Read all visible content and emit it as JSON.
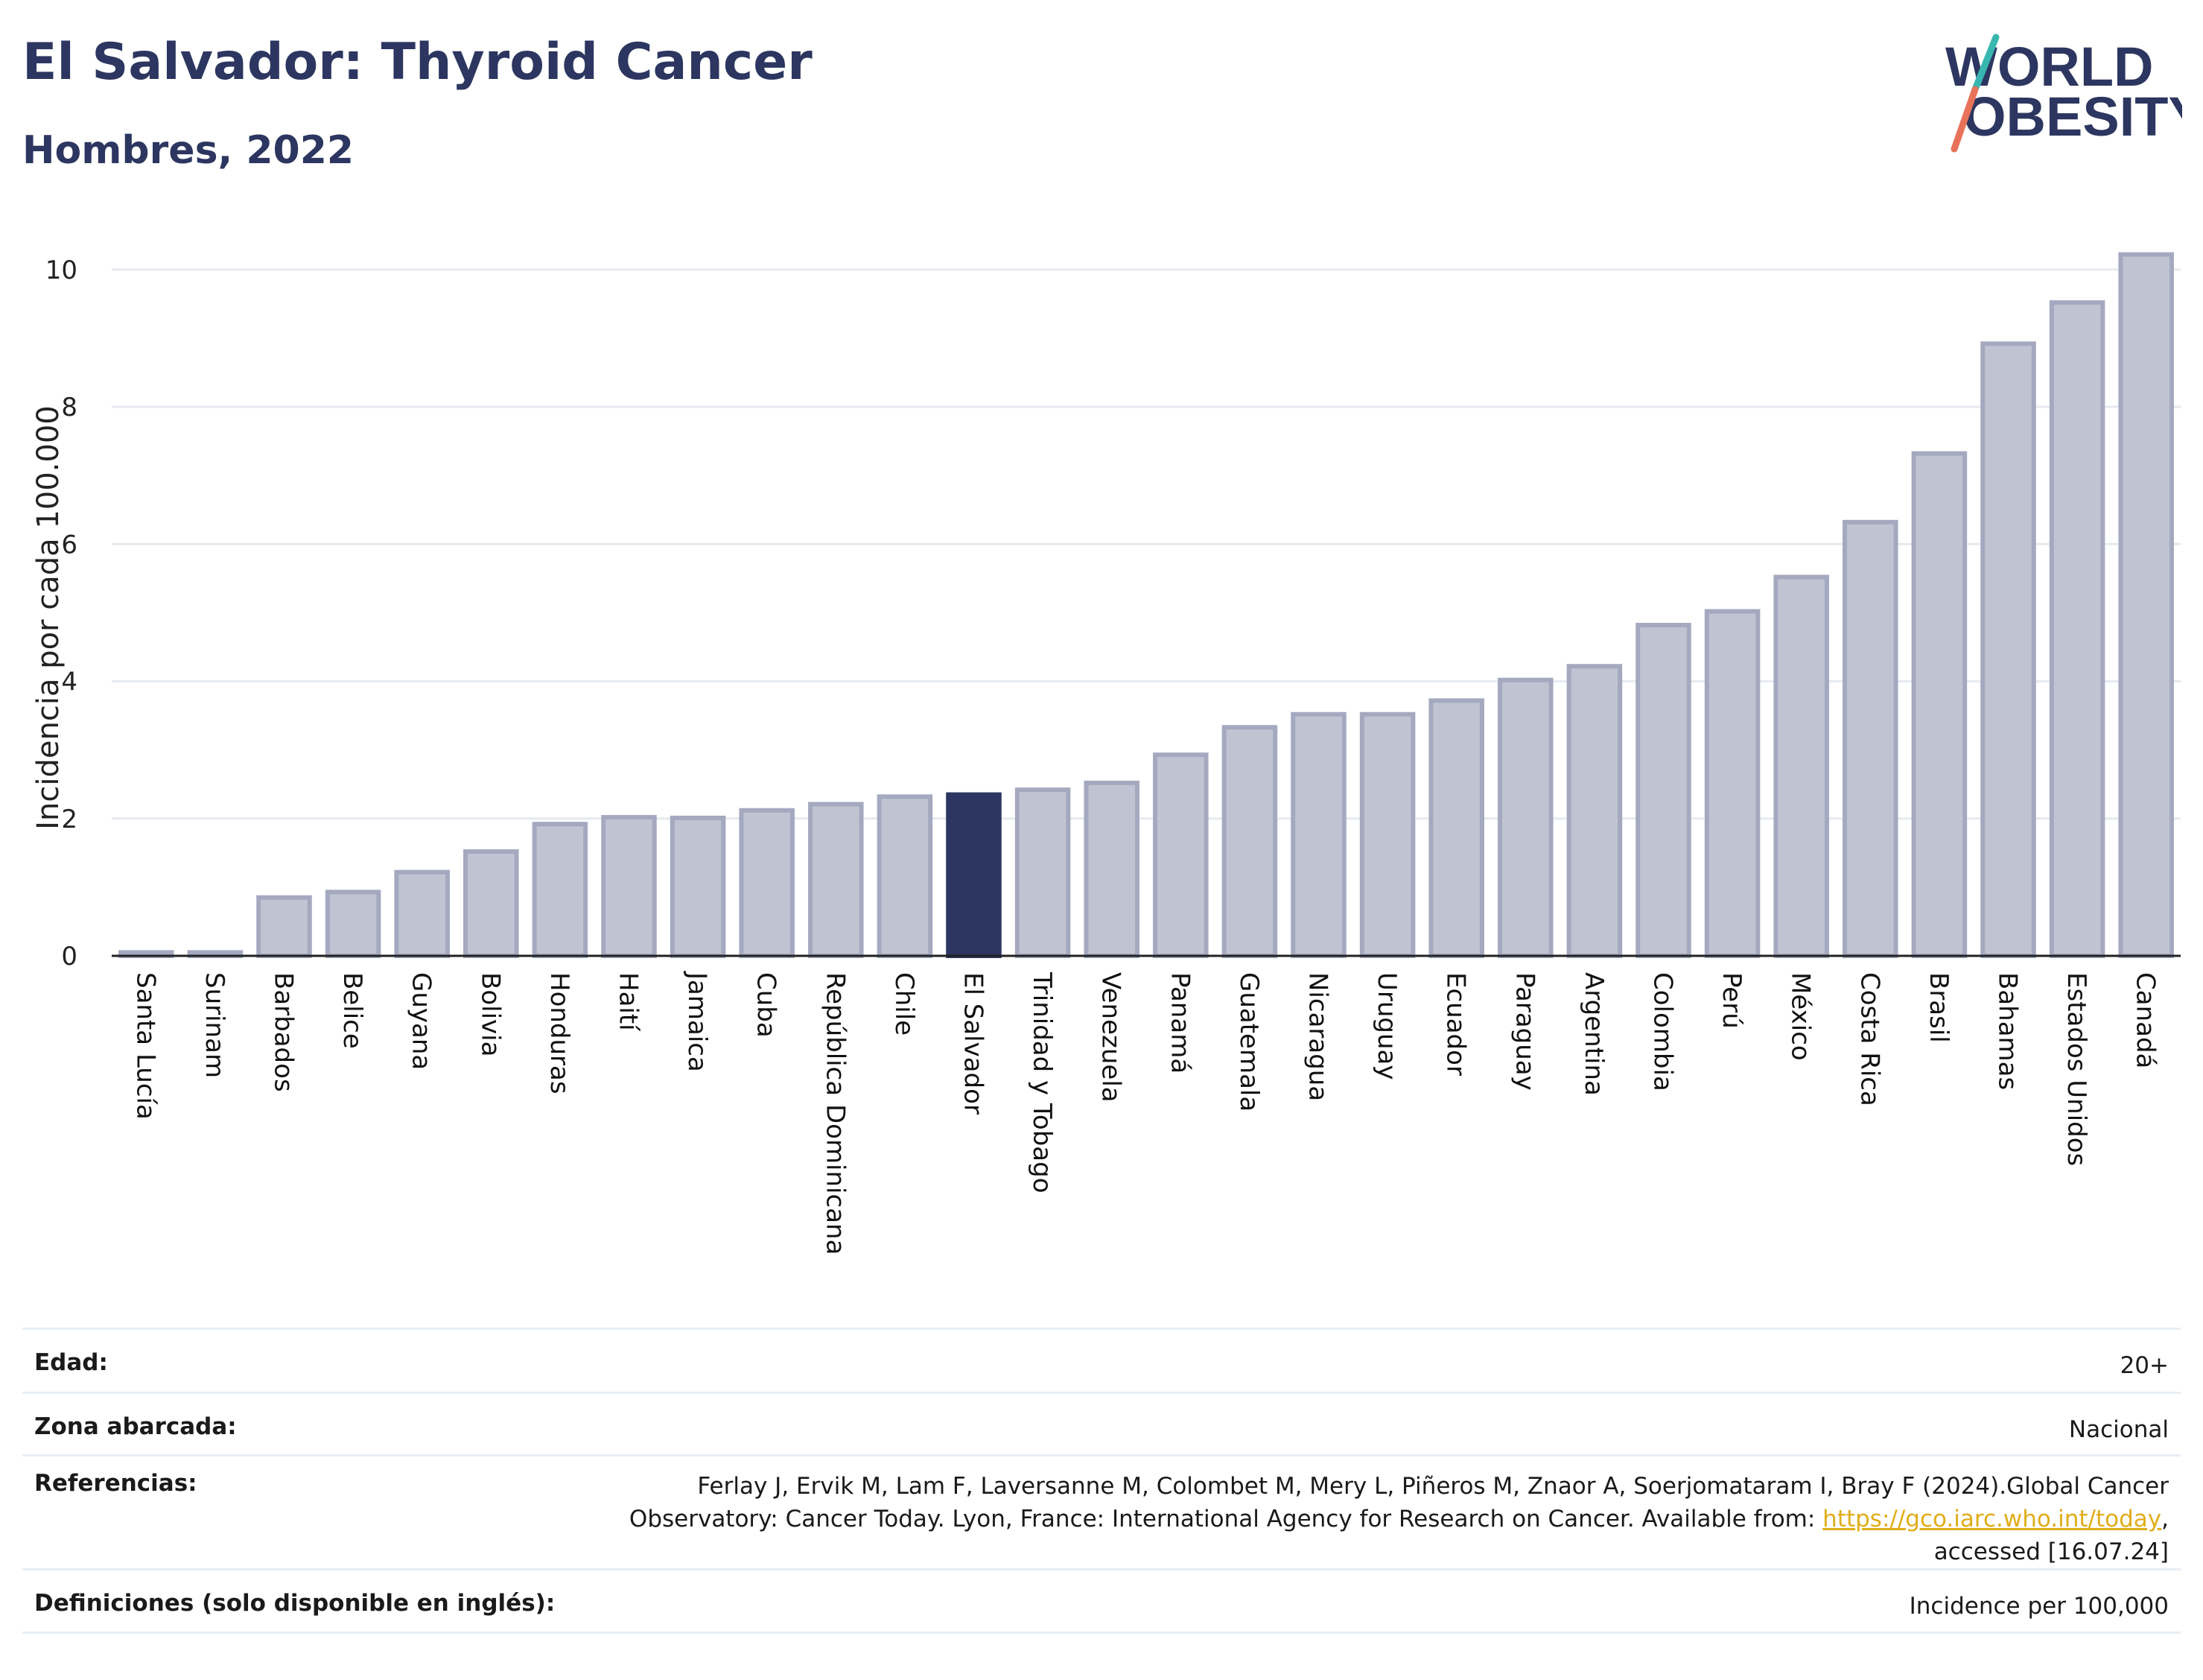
{
  "title": "El Salvador: Thyroid Cancer",
  "subtitle": "Hombres, 2022",
  "logo": {
    "line1": "WORLD",
    "line2": "OBESITY"
  },
  "colors": {
    "title": "#2c3660",
    "bar_default": "#c0c4d2",
    "bar_border": "#a4a9c0",
    "bar_highlight": "#2c3660",
    "logo_slash_top": "#38b6b0",
    "logo_slash_bottom": "#e8735a",
    "link": "#e0ad1a"
  },
  "chart_data": {
    "type": "bar",
    "ylabel": "Incidencia por cada 100.000",
    "ylim": [
      0,
      10.4
    ],
    "yticks": [
      0,
      2,
      4,
      6,
      8,
      10
    ],
    "grid": true,
    "highlight": "El Salvador",
    "categories": [
      "Santa Lucía",
      "Surinam",
      "Barbados",
      "Belice",
      "Guyana",
      "Bolivia",
      "Honduras",
      "Haití",
      "Jamaica",
      "Cuba",
      "República Dominicana",
      "Chile",
      "El Salvador",
      "Trinidad y Tobago",
      "Venezuela",
      "Panamá",
      "Guatemala",
      "Nicaragua",
      "Uruguay",
      "Ecuador",
      "Paraguay",
      "Argentina",
      "Colombia",
      "Perú",
      "México",
      "Costa Rica",
      "Brasil",
      "Bahamas",
      "Estados Unidos",
      "Canadá"
    ],
    "values": [
      0.05,
      0.05,
      0.85,
      0.93,
      1.22,
      1.52,
      1.92,
      2.02,
      2.01,
      2.12,
      2.21,
      2.32,
      2.35,
      2.42,
      2.52,
      2.93,
      3.33,
      3.52,
      3.52,
      3.72,
      4.02,
      4.22,
      4.82,
      5.02,
      5.52,
      6.32,
      7.32,
      8.92,
      9.52,
      10.22
    ]
  },
  "info": {
    "age_label": "Edad:",
    "age_value": "20+",
    "area_label": "Zona abarcada:",
    "area_value": "Nacional",
    "refs_label": "Referencias:",
    "refs_line1": "Ferlay J, Ervik M, Lam F, Laversanne M, Colombet M, Mery L, Piñeros M, Znaor A, Soerjomataram I, Bray F (2024).Global Cancer",
    "refs_line2_pre": "Observatory: Cancer Today. Lyon, France: International Agency for Research on Cancer. Available from:",
    "refs_link": "https://gco.iarc.who.int/today",
    "refs_line2_post": ",",
    "refs_line3": "accessed [16.07.24]",
    "defs_label": "Definiciones (solo disponible en inglés):",
    "defs_value": "Incidence per 100,000"
  }
}
